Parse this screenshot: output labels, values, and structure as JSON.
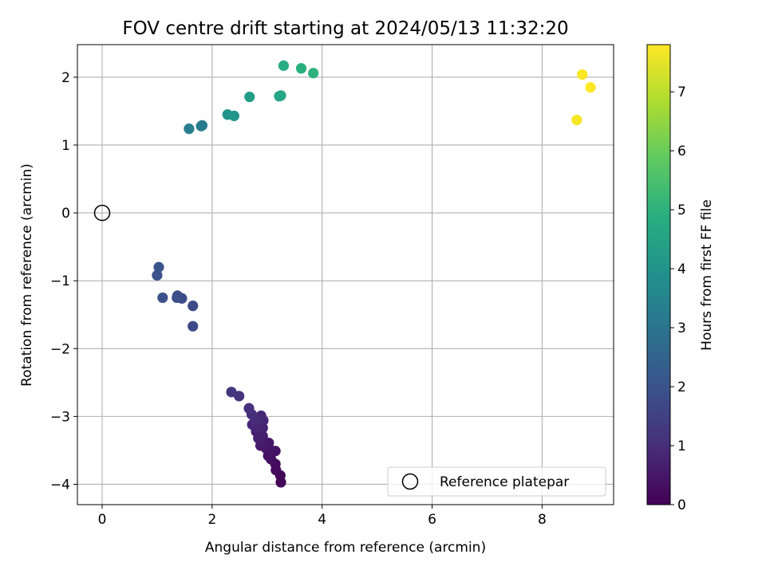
{
  "chart_data": {
    "type": "scatter",
    "title": "FOV centre drift starting at 2024/05/13 11:32:20",
    "xlabel": "Angular distance from reference (arcmin)",
    "ylabel": "Rotation from reference (arcmin)",
    "xlim": [
      -0.45,
      9.3
    ],
    "ylim": [
      -4.3,
      2.48
    ],
    "xticks": [
      0,
      2,
      4,
      6,
      8
    ],
    "yticks": [
      -4,
      -3,
      -2,
      -1,
      0,
      1,
      2
    ],
    "xtick_labels": [
      "0",
      "2",
      "4",
      "6",
      "8"
    ],
    "ytick_labels": [
      "−4",
      "−3",
      "−2",
      "−1",
      "0",
      "1",
      "2"
    ],
    "grid": true,
    "colormap": "viridis",
    "colorbar": {
      "label": "Hours from first FF file",
      "range": [
        0,
        7.8
      ],
      "ticks": [
        0,
        1,
        2,
        3,
        4,
        5,
        6,
        7
      ],
      "tick_labels": [
        "0",
        "1",
        "2",
        "3",
        "4",
        "5",
        "6",
        "7"
      ]
    },
    "legend": {
      "position": "lower-right",
      "entries": [
        "Reference platepar"
      ]
    },
    "reference": {
      "x": 0,
      "y": 0
    },
    "points": [
      {
        "x": 2.35,
        "y": -2.64,
        "c": 1.2
      },
      {
        "x": 2.49,
        "y": -2.7,
        "c": 1.15
      },
      {
        "x": 2.67,
        "y": -2.88,
        "c": 1.05
      },
      {
        "x": 2.72,
        "y": -2.97,
        "c": 1.0
      },
      {
        "x": 2.78,
        "y": -3.03,
        "c": 0.95
      },
      {
        "x": 2.85,
        "y": -3.05,
        "c": 0.9
      },
      {
        "x": 2.89,
        "y": -2.99,
        "c": 0.88
      },
      {
        "x": 2.73,
        "y": -3.12,
        "c": 0.85
      },
      {
        "x": 2.82,
        "y": -3.16,
        "c": 0.8
      },
      {
        "x": 2.93,
        "y": -3.06,
        "c": 0.78
      },
      {
        "x": 2.92,
        "y": -3.17,
        "c": 0.75
      },
      {
        "x": 2.8,
        "y": -3.22,
        "c": 0.72
      },
      {
        "x": 2.87,
        "y": -3.26,
        "c": 0.68
      },
      {
        "x": 2.84,
        "y": -3.32,
        "c": 0.65
      },
      {
        "x": 2.92,
        "y": -3.29,
        "c": 0.62
      },
      {
        "x": 2.9,
        "y": -3.36,
        "c": 0.58
      },
      {
        "x": 2.88,
        "y": -3.43,
        "c": 0.55
      },
      {
        "x": 2.95,
        "y": -3.41,
        "c": 0.52
      },
      {
        "x": 3.03,
        "y": -3.39,
        "c": 0.48
      },
      {
        "x": 2.98,
        "y": -3.47,
        "c": 0.45
      },
      {
        "x": 3.07,
        "y": -3.5,
        "c": 0.42
      },
      {
        "x": 3.15,
        "y": -3.51,
        "c": 0.38
      },
      {
        "x": 3.02,
        "y": -3.58,
        "c": 0.35
      },
      {
        "x": 3.07,
        "y": -3.63,
        "c": 0.3
      },
      {
        "x": 3.15,
        "y": -3.7,
        "c": 0.25
      },
      {
        "x": 3.16,
        "y": -3.79,
        "c": 0.2
      },
      {
        "x": 3.24,
        "y": -3.87,
        "c": 0.15
      },
      {
        "x": 3.25,
        "y": -3.97,
        "c": 0.1
      },
      {
        "x": 1.03,
        "y": -0.8,
        "c": 2.0
      },
      {
        "x": 1.0,
        "y": -0.92,
        "c": 1.95
      },
      {
        "x": 1.1,
        "y": -1.25,
        "c": 1.9
      },
      {
        "x": 1.37,
        "y": -1.22,
        "c": 1.85
      },
      {
        "x": 1.36,
        "y": -1.25,
        "c": 1.82
      },
      {
        "x": 1.45,
        "y": -1.26,
        "c": 1.8
      },
      {
        "x": 1.65,
        "y": -1.37,
        "c": 1.75
      },
      {
        "x": 1.65,
        "y": -1.67,
        "c": 1.7
      },
      {
        "x": 1.58,
        "y": 1.24,
        "c": 3.3
      },
      {
        "x": 1.8,
        "y": 1.28,
        "c": 3.2
      },
      {
        "x": 1.82,
        "y": 1.29,
        "c": 3.15
      },
      {
        "x": 2.28,
        "y": 1.45,
        "c": 4.0
      },
      {
        "x": 2.4,
        "y": 1.43,
        "c": 4.1
      },
      {
        "x": 2.68,
        "y": 1.71,
        "c": 4.3
      },
      {
        "x": 3.22,
        "y": 1.72,
        "c": 4.5
      },
      {
        "x": 3.25,
        "y": 1.73,
        "c": 4.6
      },
      {
        "x": 3.3,
        "y": 2.17,
        "c": 4.8
      },
      {
        "x": 3.62,
        "y": 2.13,
        "c": 4.9
      },
      {
        "x": 3.84,
        "y": 2.06,
        "c": 5.0
      },
      {
        "x": 8.63,
        "y": 1.37,
        "c": 7.7
      },
      {
        "x": 8.73,
        "y": 2.04,
        "c": 7.75
      },
      {
        "x": 8.88,
        "y": 1.85,
        "c": 7.8
      }
    ]
  }
}
